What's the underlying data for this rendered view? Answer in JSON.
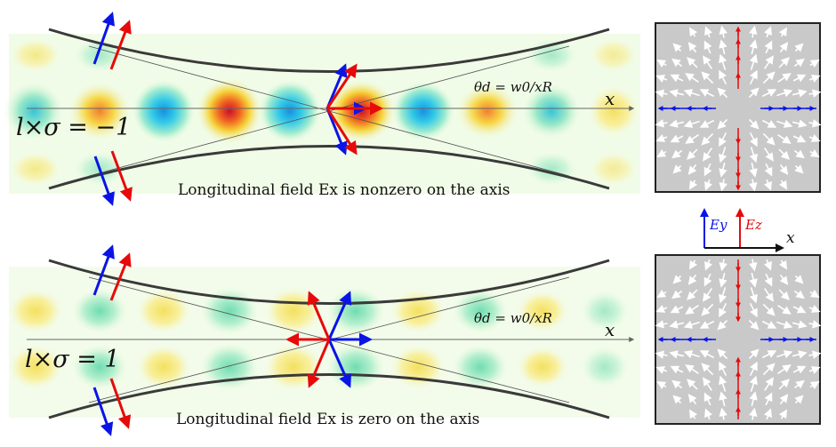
{
  "top_panel": {
    "formula": "l×σ = −1",
    "theta_label": "θd = w0/xR",
    "axis_label": "x",
    "caption": "Longitudinal field Ex is nonzero on the axis"
  },
  "bottom_panel": {
    "formula": "l×σ = 1",
    "theta_label": "θd = w0/xR",
    "axis_label": "x",
    "caption": "Longitudinal field Ex is zero on the axis"
  },
  "legend": {
    "ey_label": "Ey",
    "ez_label": "Ez",
    "x_label": "x"
  },
  "colors": {
    "blue": "#0a14e6",
    "red": "#e60a0a",
    "beam_edge": "#3a3a3a",
    "field_box": "#c9c9c9",
    "positive_field": "#d92020",
    "negative_field": "#1a9be0"
  }
}
